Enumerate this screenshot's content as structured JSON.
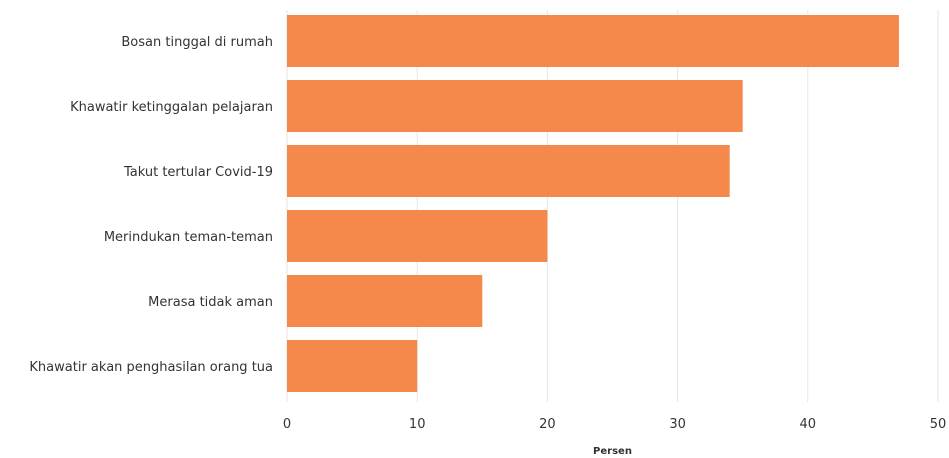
{
  "chart_data": {
    "type": "bar",
    "orientation": "horizontal",
    "categories": [
      "Bosan tinggal di rumah",
      "Khawatir ketinggalan pelajaran",
      "Takut tertular Covid-19",
      "Merindukan teman-teman",
      "Merasa tidak aman",
      "Khawatir akan penghasilan orang tua"
    ],
    "values": [
      47,
      35,
      34,
      20,
      15,
      10
    ],
    "xlabel": "Persen",
    "ylabel": "",
    "title": "",
    "xlim": [
      0,
      50
    ],
    "xticks": [
      0,
      10,
      20,
      30,
      40,
      50
    ],
    "grid": "vertical",
    "colors": {
      "bar": "#f4894b"
    }
  }
}
